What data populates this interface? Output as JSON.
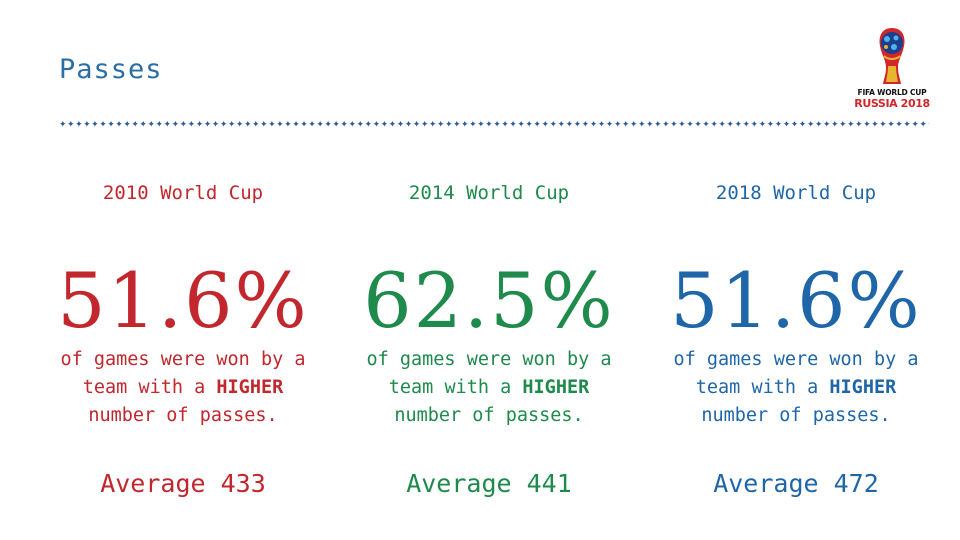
{
  "title": "Passes",
  "divider_text": "✦✦✦✦✦✦✦✦✦✦✦✦✦✦✦✦✦✦✦✦✦✦✦✦✦✦✦✦✦✦✦✦✦✦✦✦✦✦✦✦✦✦✦✦✦✦✦✦✦✦✦✦✦✦✦✦✦✦✦✦✦✦✦✦✦✦✦✦✦✦✦✦✦✦✦✦✦✦✦✦✦✦✦✦✦✦✦✦✦✦✦✦✦✦✦✦✦✦✦✦✦✦✦✦✦✦✦✦✦✦✦✦✦✦✦✦✦✦✦✦✦✦✦✦✦✦✦✦✦",
  "logo": {
    "line1": "FIFA WORLD CUP",
    "line2": "RUSSIA 2018",
    "icon": "world-cup-emblem"
  },
  "colors": {
    "title": "#2a6ea6",
    "red": "#c1272d",
    "green": "#1e8a4c",
    "blue": "#1f66a8"
  },
  "columns": [
    {
      "heading": "2010 World Cup",
      "percent": "51.6%",
      "desc_pre": "of games were won by a",
      "desc_mid": "team with a ",
      "desc_bold": "HIGHER",
      "desc_post": "number of passes.",
      "average": "Average 433"
    },
    {
      "heading": "2014 World Cup",
      "percent": "62.5%",
      "desc_pre": "of games were won by a",
      "desc_mid": "team with a ",
      "desc_bold": "HIGHER",
      "desc_post": "number of passes.",
      "average": "Average 441"
    },
    {
      "heading": "2018 World Cup",
      "percent": "51.6%",
      "desc_pre": "of games were won by a",
      "desc_mid": "team with a ",
      "desc_bold": "HIGHER",
      "desc_post": "number of passes.",
      "average": "Average 472"
    }
  ]
}
